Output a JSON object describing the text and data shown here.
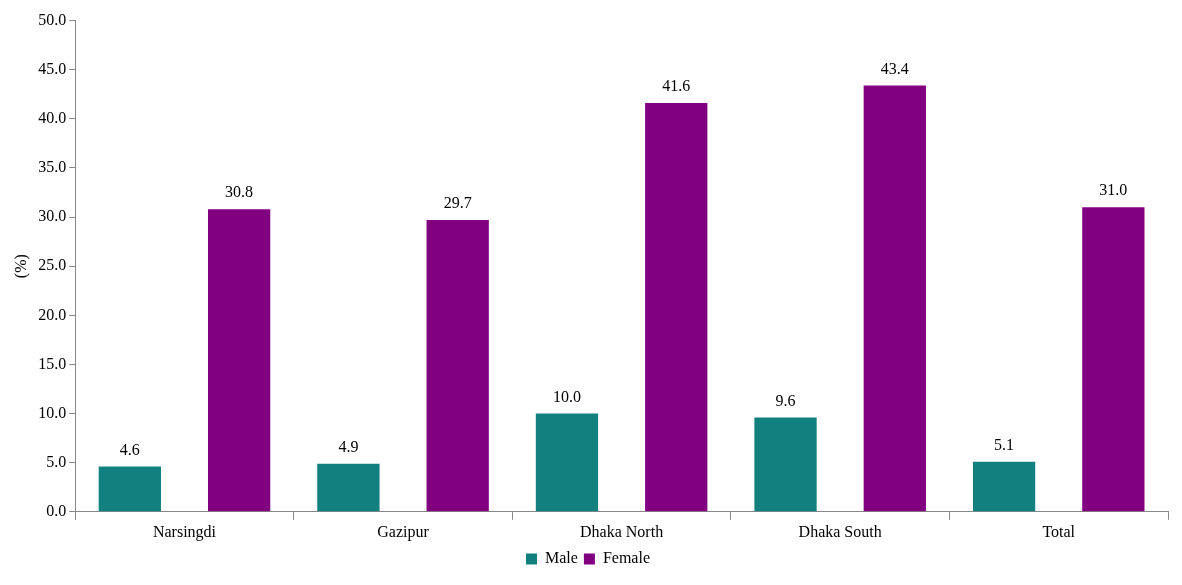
{
  "chart_data": {
    "type": "bar",
    "ylabel": "(%)",
    "categories": [
      "Narsingdi",
      "Gazipur",
      "Dhaka North",
      "Dhaka South",
      "Total"
    ],
    "series": [
      {
        "name": "Male",
        "color": "#138080",
        "values": [
          4.6,
          4.9,
          10.0,
          9.6,
          5.1
        ],
        "value_labels": [
          "4.6",
          "4.9",
          "10.0",
          "9.6",
          "5.1"
        ]
      },
      {
        "name": "Female",
        "color": "#800080",
        "values": [
          30.8,
          29.7,
          41.6,
          43.4,
          31.0
        ],
        "value_labels": [
          "30.8",
          "29.7",
          "41.6",
          "43.4",
          "31.0"
        ]
      }
    ],
    "ylim": [
      0,
      50
    ],
    "yticks": [
      {
        "value": 0,
        "label": "0.0"
      },
      {
        "value": 5,
        "label": "5.0"
      },
      {
        "value": 10,
        "label": "10.0"
      },
      {
        "value": 15,
        "label": "15.0"
      },
      {
        "value": 20,
        "label": "20.0"
      },
      {
        "value": 25,
        "label": "25.0"
      },
      {
        "value": 30,
        "label": "30.0"
      },
      {
        "value": 35,
        "label": "35.0"
      },
      {
        "value": 40,
        "label": "40.0"
      },
      {
        "value": 45,
        "label": "45.0"
      },
      {
        "value": 50,
        "label": "50.0"
      }
    ],
    "grid": false,
    "legend": "bottom"
  }
}
